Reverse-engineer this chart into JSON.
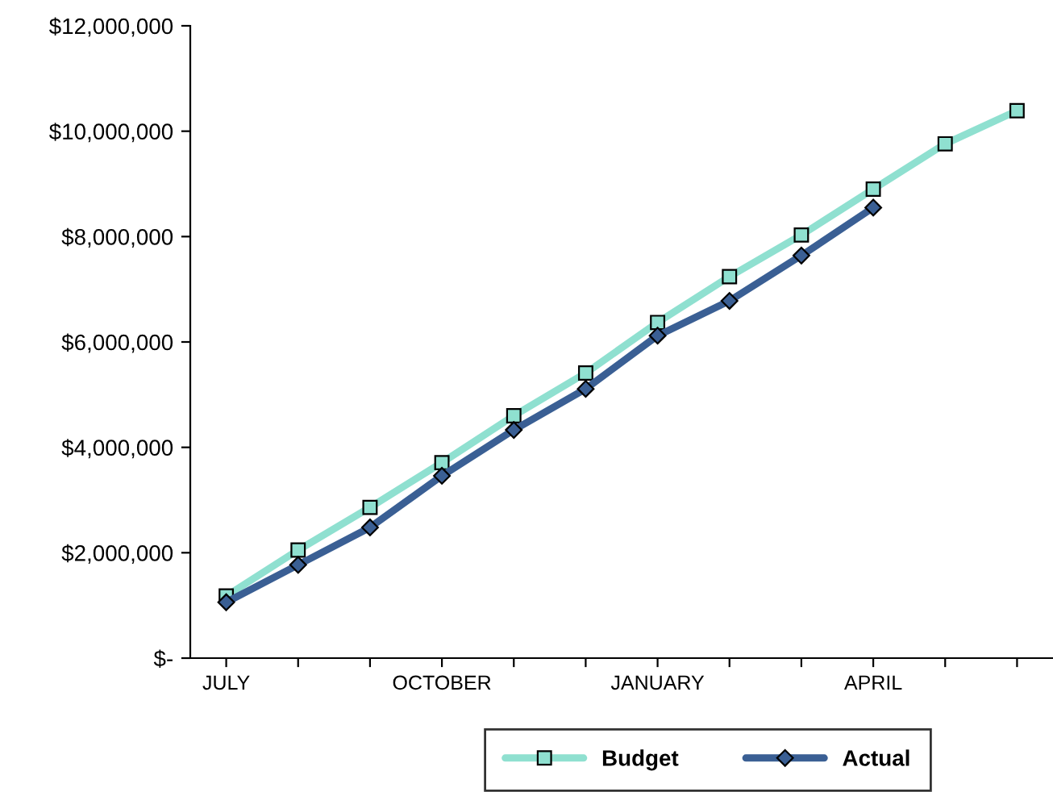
{
  "chart_data": {
    "type": "line",
    "categories": [
      "JULY",
      null,
      null,
      "OCTOBER",
      null,
      null,
      "JANUARY",
      null,
      null,
      "APRIL",
      null,
      null
    ],
    "series": [
      {
        "name": "Budget",
        "color": "#8fe0d0",
        "marker": "square",
        "values": [
          1180000,
          2050000,
          2860000,
          3710000,
          4600000,
          5410000,
          6370000,
          7240000,
          8030000,
          8900000,
          9760000,
          10390000
        ]
      },
      {
        "name": "Actual",
        "color": "#3a5f94",
        "marker": "diamond",
        "values": [
          1060000,
          1770000,
          2480000,
          3460000,
          4330000,
          5110000,
          6120000,
          6780000,
          7640000,
          8550000,
          null,
          null
        ]
      }
    ],
    "ylim": [
      0,
      12000000
    ],
    "yticks": [
      {
        "value": 0,
        "label": "$-"
      },
      {
        "value": 2000000,
        "label": "$2,000,000"
      },
      {
        "value": 4000000,
        "label": "$4,000,000"
      },
      {
        "value": 6000000,
        "label": "$6,000,000"
      },
      {
        "value": 8000000,
        "label": "$8,000,000"
      },
      {
        "value": 10000000,
        "label": "$10,000,000"
      },
      {
        "value": 12000000,
        "label": "$12,000,000"
      }
    ],
    "grid": false,
    "legend": "bottom",
    "line_style": "solid"
  }
}
